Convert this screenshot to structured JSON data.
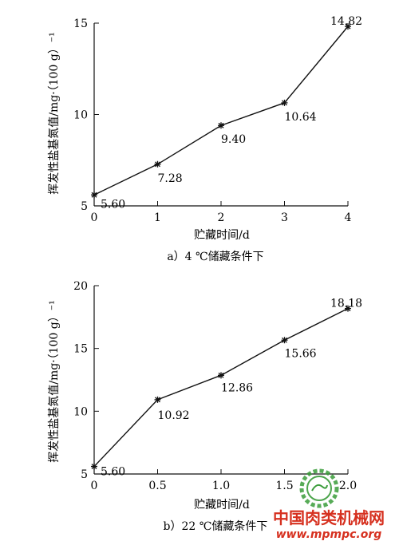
{
  "chart_data": [
    {
      "type": "line",
      "caption": "a）4 ℃储藏条件下",
      "xlabel": "贮藏时间/d",
      "ylabel": "挥发性盐基氮值/mg·（100 g）⁻¹",
      "x": [
        0,
        1,
        2,
        3,
        4
      ],
      "x_ticks": [
        "0",
        "1",
        "2",
        "3",
        "4"
      ],
      "y_ticks": [
        "5",
        "10",
        "15"
      ],
      "xlim": [
        0,
        4
      ],
      "ylim": [
        5,
        15
      ],
      "grid": false,
      "series": [
        {
          "values": [
            5.6,
            7.28,
            9.4,
            10.64,
            14.82
          ],
          "labels": [
            "5.60",
            "7.28",
            "9.40",
            "10.64",
            "14.82"
          ]
        }
      ]
    },
    {
      "type": "line",
      "caption": "b）22 ℃储藏条件下",
      "xlabel": "贮藏时间/d",
      "ylabel": "挥发性盐基氮值/mg·（100 g）⁻¹",
      "x": [
        0,
        0.5,
        1.0,
        1.5,
        2.0
      ],
      "x_ticks": [
        "0",
        "0.5",
        "1.0",
        "1.5",
        "2.0"
      ],
      "y_ticks": [
        "5",
        "10",
        "15",
        "20"
      ],
      "xlim": [
        0,
        2
      ],
      "ylim": [
        5,
        20
      ],
      "grid": false,
      "series": [
        {
          "values": [
            5.6,
            10.92,
            12.86,
            15.66,
            18.18
          ],
          "labels": [
            "5.60",
            "10.92",
            "12.86",
            "15.66",
            "18.18"
          ]
        }
      ]
    }
  ],
  "watermark": {
    "title": "中国肉类机械网",
    "url": "www.mpmpc.org",
    "color": "#d6301f",
    "logo_color": "#3a9c3a",
    "icon": "gear-logo-icon"
  }
}
